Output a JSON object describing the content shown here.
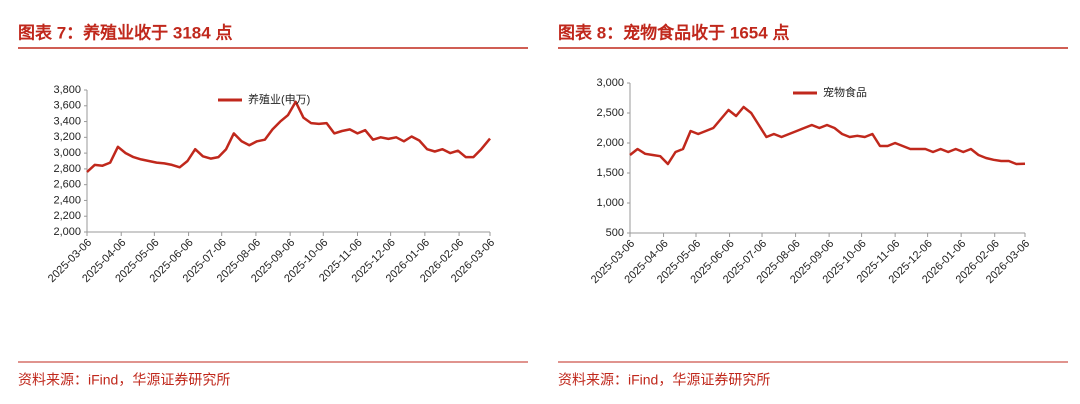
{
  "chart_data": [
    {
      "type": "line",
      "title": "图表 7：养殖业收于 3184 点",
      "source": "资料来源：iFind，华源证券研究所",
      "x": [
        "2025-03-06",
        "2025-03-13",
        "2025-03-20",
        "2025-03-27",
        "2025-04-03",
        "2025-04-10",
        "2025-04-17",
        "2025-04-24",
        "2025-05-01",
        "2025-05-08",
        "2025-05-15",
        "2025-05-22",
        "2025-05-29",
        "2025-06-05",
        "2025-06-12",
        "2025-06-19",
        "2025-06-26",
        "2025-07-03",
        "2025-07-10",
        "2025-07-17",
        "2025-07-24",
        "2025-07-31",
        "2025-08-07",
        "2025-08-14",
        "2025-08-21",
        "2025-08-28",
        "2025-09-04",
        "2025-09-11",
        "2025-09-18",
        "2025-09-25",
        "2025-10-02",
        "2025-10-09",
        "2025-10-16",
        "2025-10-23",
        "2025-10-30",
        "2025-11-06",
        "2025-11-13",
        "2025-11-20",
        "2025-11-27",
        "2025-12-04",
        "2025-12-11",
        "2025-12-18",
        "2025-12-25",
        "2026-01-01",
        "2026-01-08",
        "2026-01-15",
        "2026-01-22",
        "2026-01-29",
        "2026-02-05",
        "2026-02-12",
        "2026-02-19",
        "2026-02-26",
        "2026-03-06"
      ],
      "series": [
        {
          "name": "养殖业(申万)",
          "color": "#c0281c",
          "values": [
            2760,
            2850,
            2840,
            2880,
            3080,
            3000,
            2950,
            2920,
            2900,
            2880,
            2870,
            2850,
            2820,
            2900,
            3050,
            2960,
            2930,
            2950,
            3050,
            3250,
            3150,
            3100,
            3150,
            3170,
            3300,
            3400,
            3480,
            3650,
            3450,
            3380,
            3370,
            3380,
            3250,
            3280,
            3300,
            3250,
            3290,
            3170,
            3200,
            3180,
            3200,
            3150,
            3210,
            3160,
            3050,
            3020,
            3050,
            3000,
            3030,
            2950,
            2950,
            3050,
            3184
          ]
        }
      ],
      "xlim": [
        "2025-03-06",
        "2026-03-06"
      ],
      "xticks": [
        "2025-03-06",
        "2025-04-06",
        "2025-05-06",
        "2025-06-06",
        "2025-07-06",
        "2025-08-06",
        "2025-09-06",
        "2025-10-06",
        "2025-11-06",
        "2025-12-06",
        "2026-01-06",
        "2026-02-06",
        "2026-03-06"
      ],
      "ylim": [
        2000,
        3800
      ],
      "yticks": [
        {
          "value": 2000,
          "label": "2,000"
        },
        {
          "value": 2200,
          "label": "2,200"
        },
        {
          "value": 2400,
          "label": "2,400"
        },
        {
          "value": 2600,
          "label": "2,600"
        },
        {
          "value": 2800,
          "label": "2,800"
        },
        {
          "value": 3000,
          "label": "3,000"
        },
        {
          "value": 3200,
          "label": "3,200"
        },
        {
          "value": 3400,
          "label": "3,400"
        },
        {
          "value": 3600,
          "label": "3,600"
        },
        {
          "value": 3800,
          "label": "3,800"
        }
      ],
      "grid": false,
      "legend": "top"
    },
    {
      "type": "line",
      "title": "图表 8：宠物食品收于 1654 点",
      "source": "资料来源：iFind，华源证券研究所",
      "x": [
        "2025-03-06",
        "2025-03-13",
        "2025-03-20",
        "2025-03-27",
        "2025-04-03",
        "2025-04-10",
        "2025-04-17",
        "2025-04-24",
        "2025-05-01",
        "2025-05-08",
        "2025-05-15",
        "2025-05-22",
        "2025-05-29",
        "2025-06-05",
        "2025-06-12",
        "2025-06-19",
        "2025-06-26",
        "2025-07-03",
        "2025-07-10",
        "2025-07-17",
        "2025-07-24",
        "2025-07-31",
        "2025-08-07",
        "2025-08-14",
        "2025-08-21",
        "2025-08-28",
        "2025-09-04",
        "2025-09-11",
        "2025-09-18",
        "2025-09-25",
        "2025-10-02",
        "2025-10-09",
        "2025-10-16",
        "2025-10-23",
        "2025-10-30",
        "2025-11-06",
        "2025-11-13",
        "2025-11-20",
        "2025-11-27",
        "2025-12-04",
        "2025-12-11",
        "2025-12-18",
        "2025-12-25",
        "2026-01-01",
        "2026-01-08",
        "2026-01-15",
        "2026-01-22",
        "2026-01-29",
        "2026-02-05",
        "2026-02-12",
        "2026-02-19",
        "2026-02-26",
        "2026-03-06"
      ],
      "series": [
        {
          "name": "宠物食品",
          "color": "#c0281c",
          "values": [
            1800,
            1900,
            1820,
            1800,
            1780,
            1650,
            1850,
            1900,
            2200,
            2150,
            2200,
            2250,
            2400,
            2550,
            2450,
            2600,
            2500,
            2300,
            2100,
            2150,
            2100,
            2150,
            2200,
            2250,
            2300,
            2250,
            2300,
            2250,
            2150,
            2100,
            2120,
            2100,
            2150,
            1950,
            1950,
            2000,
            1950,
            1900,
            1900,
            1900,
            1850,
            1900,
            1850,
            1900,
            1850,
            1900,
            1800,
            1750,
            1720,
            1700,
            1700,
            1650,
            1654
          ]
        }
      ],
      "xlim": [
        "2025-03-06",
        "2026-03-06"
      ],
      "xticks": [
        "2025-03-06",
        "2025-04-06",
        "2025-05-06",
        "2025-06-06",
        "2025-07-06",
        "2025-08-06",
        "2025-09-06",
        "2025-10-06",
        "2025-11-06",
        "2025-12-06",
        "2026-01-06",
        "2026-02-06",
        "2026-03-06"
      ],
      "ylim": [
        500,
        3000
      ],
      "yticks": [
        500,
        {
          "value": 1000,
          "label": "1,000"
        },
        {
          "value": 1500,
          "label": "1,500"
        },
        {
          "value": 2000,
          "label": "2,000"
        },
        {
          "value": 2500,
          "label": "2,500"
        },
        {
          "value": 3000,
          "label": "3,000"
        }
      ],
      "grid": false,
      "legend": "top"
    }
  ]
}
